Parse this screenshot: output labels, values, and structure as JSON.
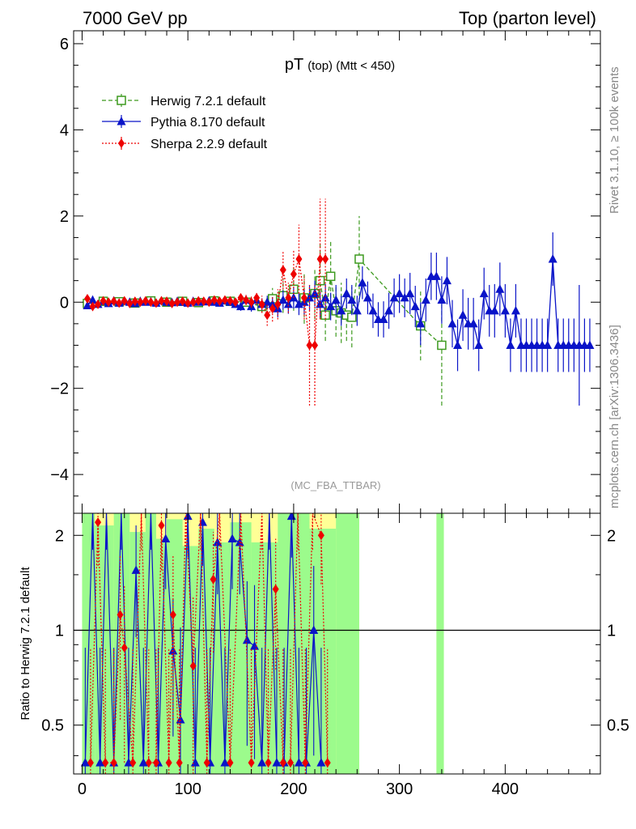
{
  "header": {
    "left": "7000 GeV pp",
    "right": "Top (parton level)"
  },
  "side_text": {
    "rivet": "Rivet 3.1.10, ≥ 100k events",
    "mcplots": "mcplots.cern.ch [arXiv:1306.3436]"
  },
  "chart_data": [
    {
      "type": "line",
      "title_main": "pT",
      "title_sub": "(top) (Mtt < 450)",
      "annotation": "(MC_FBA_TTBAR)",
      "xlim": [
        -8,
        490
      ],
      "ylim": [
        -4.9,
        6.3
      ],
      "x_ticks": [
        0,
        100,
        200,
        300,
        400
      ],
      "x_tick_labels": [
        "0",
        "100",
        "200",
        "300",
        "400"
      ],
      "y_ticks": [
        -4,
        -2,
        0,
        2,
        4,
        6
      ],
      "y_tick_labels": [
        "−4",
        "−2",
        "0",
        "2",
        "4",
        "6"
      ],
      "series": [
        {
          "name": "Herwig 7.2.1 default",
          "color": "#3d9a1f",
          "style": "dashed",
          "marker": "open-square",
          "x": [
            5,
            20,
            35,
            50,
            65,
            80,
            95,
            110,
            125,
            140,
            155,
            170,
            180,
            190,
            200,
            210,
            220,
            225,
            230,
            235,
            240,
            245,
            250,
            255,
            262,
            320,
            340
          ],
          "y": [
            -0.03,
            0.02,
            0.01,
            -0.02,
            0.03,
            0.0,
            0.02,
            -0.01,
            0.03,
            0.02,
            0.0,
            -0.1,
            0.08,
            0.15,
            0.3,
            0.1,
            0.2,
            0.5,
            -0.3,
            0.6,
            -0.2,
            -0.25,
            -0.3,
            -0.35,
            1.0,
            -0.55,
            -1.0
          ],
          "err": [
            0.08,
            0.06,
            0.06,
            0.05,
            0.05,
            0.05,
            0.05,
            0.05,
            0.06,
            0.07,
            0.1,
            0.15,
            0.25,
            0.4,
            0.5,
            0.6,
            0.6,
            0.9,
            0.6,
            0.8,
            0.6,
            0.7,
            0.6,
            0.7,
            1.0,
            0.8,
            1.4
          ]
        },
        {
          "name": "Pythia 8.170 default",
          "color": "#0a14c8",
          "style": "solid",
          "marker": "filled-triangle",
          "x": [
            5,
            10,
            15,
            20,
            25,
            30,
            35,
            40,
            45,
            50,
            55,
            60,
            65,
            70,
            75,
            80,
            85,
            90,
            95,
            100,
            105,
            110,
            115,
            120,
            125,
            130,
            135,
            140,
            145,
            150,
            155,
            160,
            165,
            170,
            175,
            180,
            185,
            190,
            195,
            200,
            205,
            210,
            215,
            220,
            225,
            230,
            235,
            240,
            245,
            250,
            255,
            260,
            265,
            270,
            275,
            280,
            285,
            290,
            295,
            300,
            305,
            310,
            315,
            320,
            325,
            330,
            335,
            340,
            345,
            350,
            355,
            360,
            365,
            370,
            375,
            380,
            385,
            390,
            395,
            400,
            405,
            410,
            415,
            420,
            425,
            430,
            435,
            440,
            445,
            450,
            455,
            460,
            465,
            470,
            475,
            480
          ],
          "y": [
            -0.08,
            0.05,
            -0.05,
            0.02,
            -0.03,
            0.03,
            -0.02,
            0.02,
            0.0,
            -0.03,
            0.02,
            0.0,
            0.01,
            -0.02,
            0.03,
            0.0,
            -0.01,
            0.02,
            0.0,
            -0.02,
            0.02,
            0.0,
            0.01,
            0.03,
            0.0,
            -0.02,
            0.03,
            0.0,
            -0.05,
            -0.1,
            0.05,
            -0.1,
            0.05,
            -0.05,
            0.0,
            -0.05,
            -0.15,
            0.05,
            -0.05,
            0.1,
            -0.05,
            0.0,
            0.1,
            0.2,
            -0.05,
            0.1,
            -0.1,
            0.05,
            -0.2,
            0.2,
            0.05,
            -0.2,
            0.45,
            0.1,
            -0.2,
            -0.4,
            -0.4,
            -0.2,
            0.1,
            0.2,
            0.1,
            0.2,
            -0.1,
            -0.5,
            0.05,
            0.6,
            0.6,
            0.05,
            0.5,
            -0.5,
            -1.0,
            -0.3,
            -0.5,
            -0.5,
            -1.0,
            0.2,
            -0.2,
            -0.2,
            0.3,
            -0.2,
            -1.0,
            -0.2,
            -1.0,
            -1.0,
            -1.0,
            -1.0,
            -1.0,
            -1.0,
            1.0,
            -1.0,
            -1.0,
            -1.0,
            -1.0,
            -1.0,
            -1.0,
            -1.0
          ],
          "err": [
            0.08,
            0.05,
            0.05,
            0.05,
            0.05,
            0.05,
            0.05,
            0.05,
            0.05,
            0.05,
            0.05,
            0.05,
            0.05,
            0.05,
            0.05,
            0.05,
            0.05,
            0.05,
            0.05,
            0.05,
            0.05,
            0.05,
            0.05,
            0.05,
            0.05,
            0.06,
            0.06,
            0.07,
            0.08,
            0.1,
            0.1,
            0.12,
            0.12,
            0.14,
            0.15,
            0.17,
            0.2,
            0.22,
            0.22,
            0.25,
            0.25,
            0.28,
            0.3,
            0.3,
            0.3,
            0.32,
            0.32,
            0.35,
            0.35,
            0.35,
            0.35,
            0.35,
            0.38,
            0.38,
            0.4,
            0.4,
            0.42,
            0.42,
            0.45,
            0.45,
            0.45,
            0.48,
            0.48,
            0.5,
            0.5,
            0.55,
            0.55,
            0.55,
            0.55,
            0.55,
            0.6,
            0.6,
            0.6,
            0.6,
            0.6,
            0.6,
            0.6,
            0.62,
            0.62,
            0.62,
            0.62,
            0.62,
            0.62,
            0.62,
            0.62,
            0.62,
            0.62,
            0.62,
            0.62,
            0.62,
            0.62,
            0.62,
            0.62,
            1.4,
            0.62,
            0.62
          ]
        },
        {
          "name": "Sherpa 2.2.9 default",
          "color": "#ee0000",
          "style": "dotted",
          "marker": "filled-diamond",
          "x": [
            5,
            10,
            15,
            20,
            25,
            30,
            35,
            40,
            45,
            50,
            55,
            60,
            65,
            70,
            75,
            80,
            85,
            90,
            95,
            100,
            105,
            110,
            115,
            120,
            125,
            130,
            135,
            140,
            145,
            150,
            155,
            160,
            165,
            170,
            175,
            180,
            185,
            190,
            195,
            200,
            205,
            210,
            215,
            220,
            225,
            230
          ],
          "y": [
            0.08,
            -0.1,
            -0.05,
            0.03,
            0.0,
            0.02,
            -0.02,
            0.03,
            -0.03,
            0.02,
            0.0,
            0.03,
            0.0,
            -0.02,
            0.03,
            0.02,
            -0.03,
            0.0,
            0.02,
            -0.02,
            0.0,
            0.03,
            0.02,
            0.0,
            0.05,
            0.02,
            0.05,
            0.03,
            0.0,
            0.1,
            0.05,
            0.0,
            0.1,
            -0.05,
            -0.3,
            -0.15,
            -0.05,
            0.75,
            0.1,
            0.65,
            1.0,
            0.1,
            -1.0,
            -1.0,
            1.0,
            1.0
          ],
          "err": [
            0.06,
            0.05,
            0.05,
            0.05,
            0.05,
            0.05,
            0.05,
            0.05,
            0.05,
            0.05,
            0.05,
            0.05,
            0.05,
            0.05,
            0.05,
            0.05,
            0.05,
            0.05,
            0.05,
            0.05,
            0.05,
            0.05,
            0.05,
            0.05,
            0.06,
            0.06,
            0.06,
            0.07,
            0.08,
            0.1,
            0.12,
            0.13,
            0.15,
            0.2,
            0.25,
            0.3,
            0.35,
            0.45,
            0.35,
            0.55,
            0.8,
            0.5,
            1.4,
            1.4,
            1.4,
            1.4
          ]
        }
      ]
    },
    {
      "type": "line",
      "ylabel": "Ratio to Herwig 7.2.1 default",
      "xlim": [
        -8,
        490
      ],
      "ylim": [
        0.35,
        2.35
      ],
      "y_ticks": [
        0.5,
        1,
        2
      ],
      "y_tick_labels": [
        "0.5",
        "1",
        "2"
      ],
      "reference": 1,
      "bands": {
        "yellow": [
          {
            "x0": 0,
            "x1": 262,
            "ylo": 0.35,
            "yhi": 2.35,
            "color": "#ffff96"
          },
          {
            "x0": 335,
            "x1": 342,
            "ylo": 0.35,
            "yhi": 2.35,
            "color": "#ffff96"
          }
        ],
        "green": [
          {
            "x0": 0,
            "x1": 12,
            "ylo": 0.35,
            "yhi": 2.35
          },
          {
            "x0": 12,
            "x1": 30,
            "ylo": 0.35,
            "yhi": 2.15
          },
          {
            "x0": 30,
            "x1": 45,
            "ylo": 0.35,
            "yhi": 2.35
          },
          {
            "x0": 45,
            "x1": 60,
            "ylo": 0.35,
            "yhi": 2.05
          },
          {
            "x0": 60,
            "x1": 70,
            "ylo": 0.35,
            "yhi": 2.35
          },
          {
            "x0": 70,
            "x1": 80,
            "ylo": 0.35,
            "yhi": 1.95
          },
          {
            "x0": 80,
            "x1": 95,
            "ylo": 0.35,
            "yhi": 2.25
          },
          {
            "x0": 95,
            "x1": 110,
            "ylo": 0.35,
            "yhi": 1.85
          },
          {
            "x0": 110,
            "x1": 125,
            "ylo": 0.35,
            "yhi": 2.1
          },
          {
            "x0": 125,
            "x1": 140,
            "ylo": 0.35,
            "yhi": 1.9
          },
          {
            "x0": 140,
            "x1": 160,
            "ylo": 0.35,
            "yhi": 2.2
          },
          {
            "x0": 160,
            "x1": 185,
            "ylo": 0.35,
            "yhi": 1.9
          },
          {
            "x0": 185,
            "x1": 215,
            "ylo": 0.35,
            "yhi": 2.35
          },
          {
            "x0": 215,
            "x1": 240,
            "ylo": 0.35,
            "yhi": 2.1
          },
          {
            "x0": 240,
            "x1": 262,
            "ylo": 0.35,
            "yhi": 2.35
          },
          {
            "x0": 335,
            "x1": 342,
            "ylo": 0.35,
            "yhi": 2.35
          }
        ]
      },
      "series": [
        {
          "name": "Pythia 8.170 default",
          "color": "#0a14c8",
          "x": [
            3,
            10,
            17,
            23,
            30,
            37,
            44,
            51,
            58,
            65,
            72,
            79,
            86,
            93,
            100,
            107,
            114,
            121,
            128,
            135,
            142,
            149,
            156,
            163,
            170,
            177,
            184,
            191,
            198,
            205,
            212,
            219,
            226
          ],
          "y": [
            0.38,
            2.4,
            0.38,
            2.4,
            0.38,
            2.4,
            0.38,
            1.55,
            0.38,
            2.4,
            0.38,
            1.95,
            0.86,
            0.52,
            2.3,
            0.38,
            2.2,
            0.38,
            1.9,
            0.38,
            1.95,
            1.9,
            0.93,
            0.89,
            0.38,
            2.4,
            0.38,
            0.38,
            2.3,
            0.38,
            0.38,
            1.0,
            0.38
          ],
          "err": [
            0.5,
            0.6,
            0.5,
            0.6,
            0.5,
            0.6,
            0.5,
            0.6,
            0.5,
            0.6,
            0.5,
            0.6,
            0.4,
            0.5,
            0.6,
            0.5,
            0.6,
            0.5,
            0.6,
            0.5,
            0.6,
            0.6,
            0.5,
            0.5,
            0.5,
            0.6,
            0.5,
            0.5,
            0.6,
            0.5,
            0.5,
            0.6,
            0.5
          ]
        },
        {
          "name": "Sherpa 2.2.9 default",
          "color": "#ee0000",
          "x": [
            8,
            15,
            22,
            30,
            36,
            40,
            48,
            56,
            63,
            70,
            75,
            82,
            86,
            92,
            98,
            105,
            112,
            118,
            124,
            130,
            140,
            150,
            160,
            170,
            176,
            183,
            190,
            197,
            204,
            211,
            218,
            226,
            232
          ],
          "y": [
            0.38,
            2.2,
            0.38,
            0.38,
            1.12,
            0.88,
            0.38,
            2.4,
            0.38,
            0.38,
            2.15,
            0.38,
            1.12,
            0.38,
            2.4,
            0.77,
            2.4,
            0.38,
            1.45,
            2.4,
            0.38,
            2.4,
            0.38,
            2.4,
            0.38,
            1.35,
            0.38,
            0.38,
            2.4,
            0.38,
            2.4,
            2.0,
            0.38
          ],
          "err": [
            0.5,
            0.6,
            0.5,
            0.5,
            0.6,
            0.5,
            0.5,
            0.6,
            0.5,
            0.5,
            0.6,
            0.5,
            0.6,
            0.5,
            0.6,
            0.5,
            0.6,
            0.5,
            0.6,
            0.6,
            0.5,
            0.6,
            0.5,
            0.6,
            0.5,
            0.6,
            0.5,
            0.5,
            0.6,
            0.5,
            0.6,
            0.6,
            0.5
          ]
        }
      ]
    }
  ]
}
